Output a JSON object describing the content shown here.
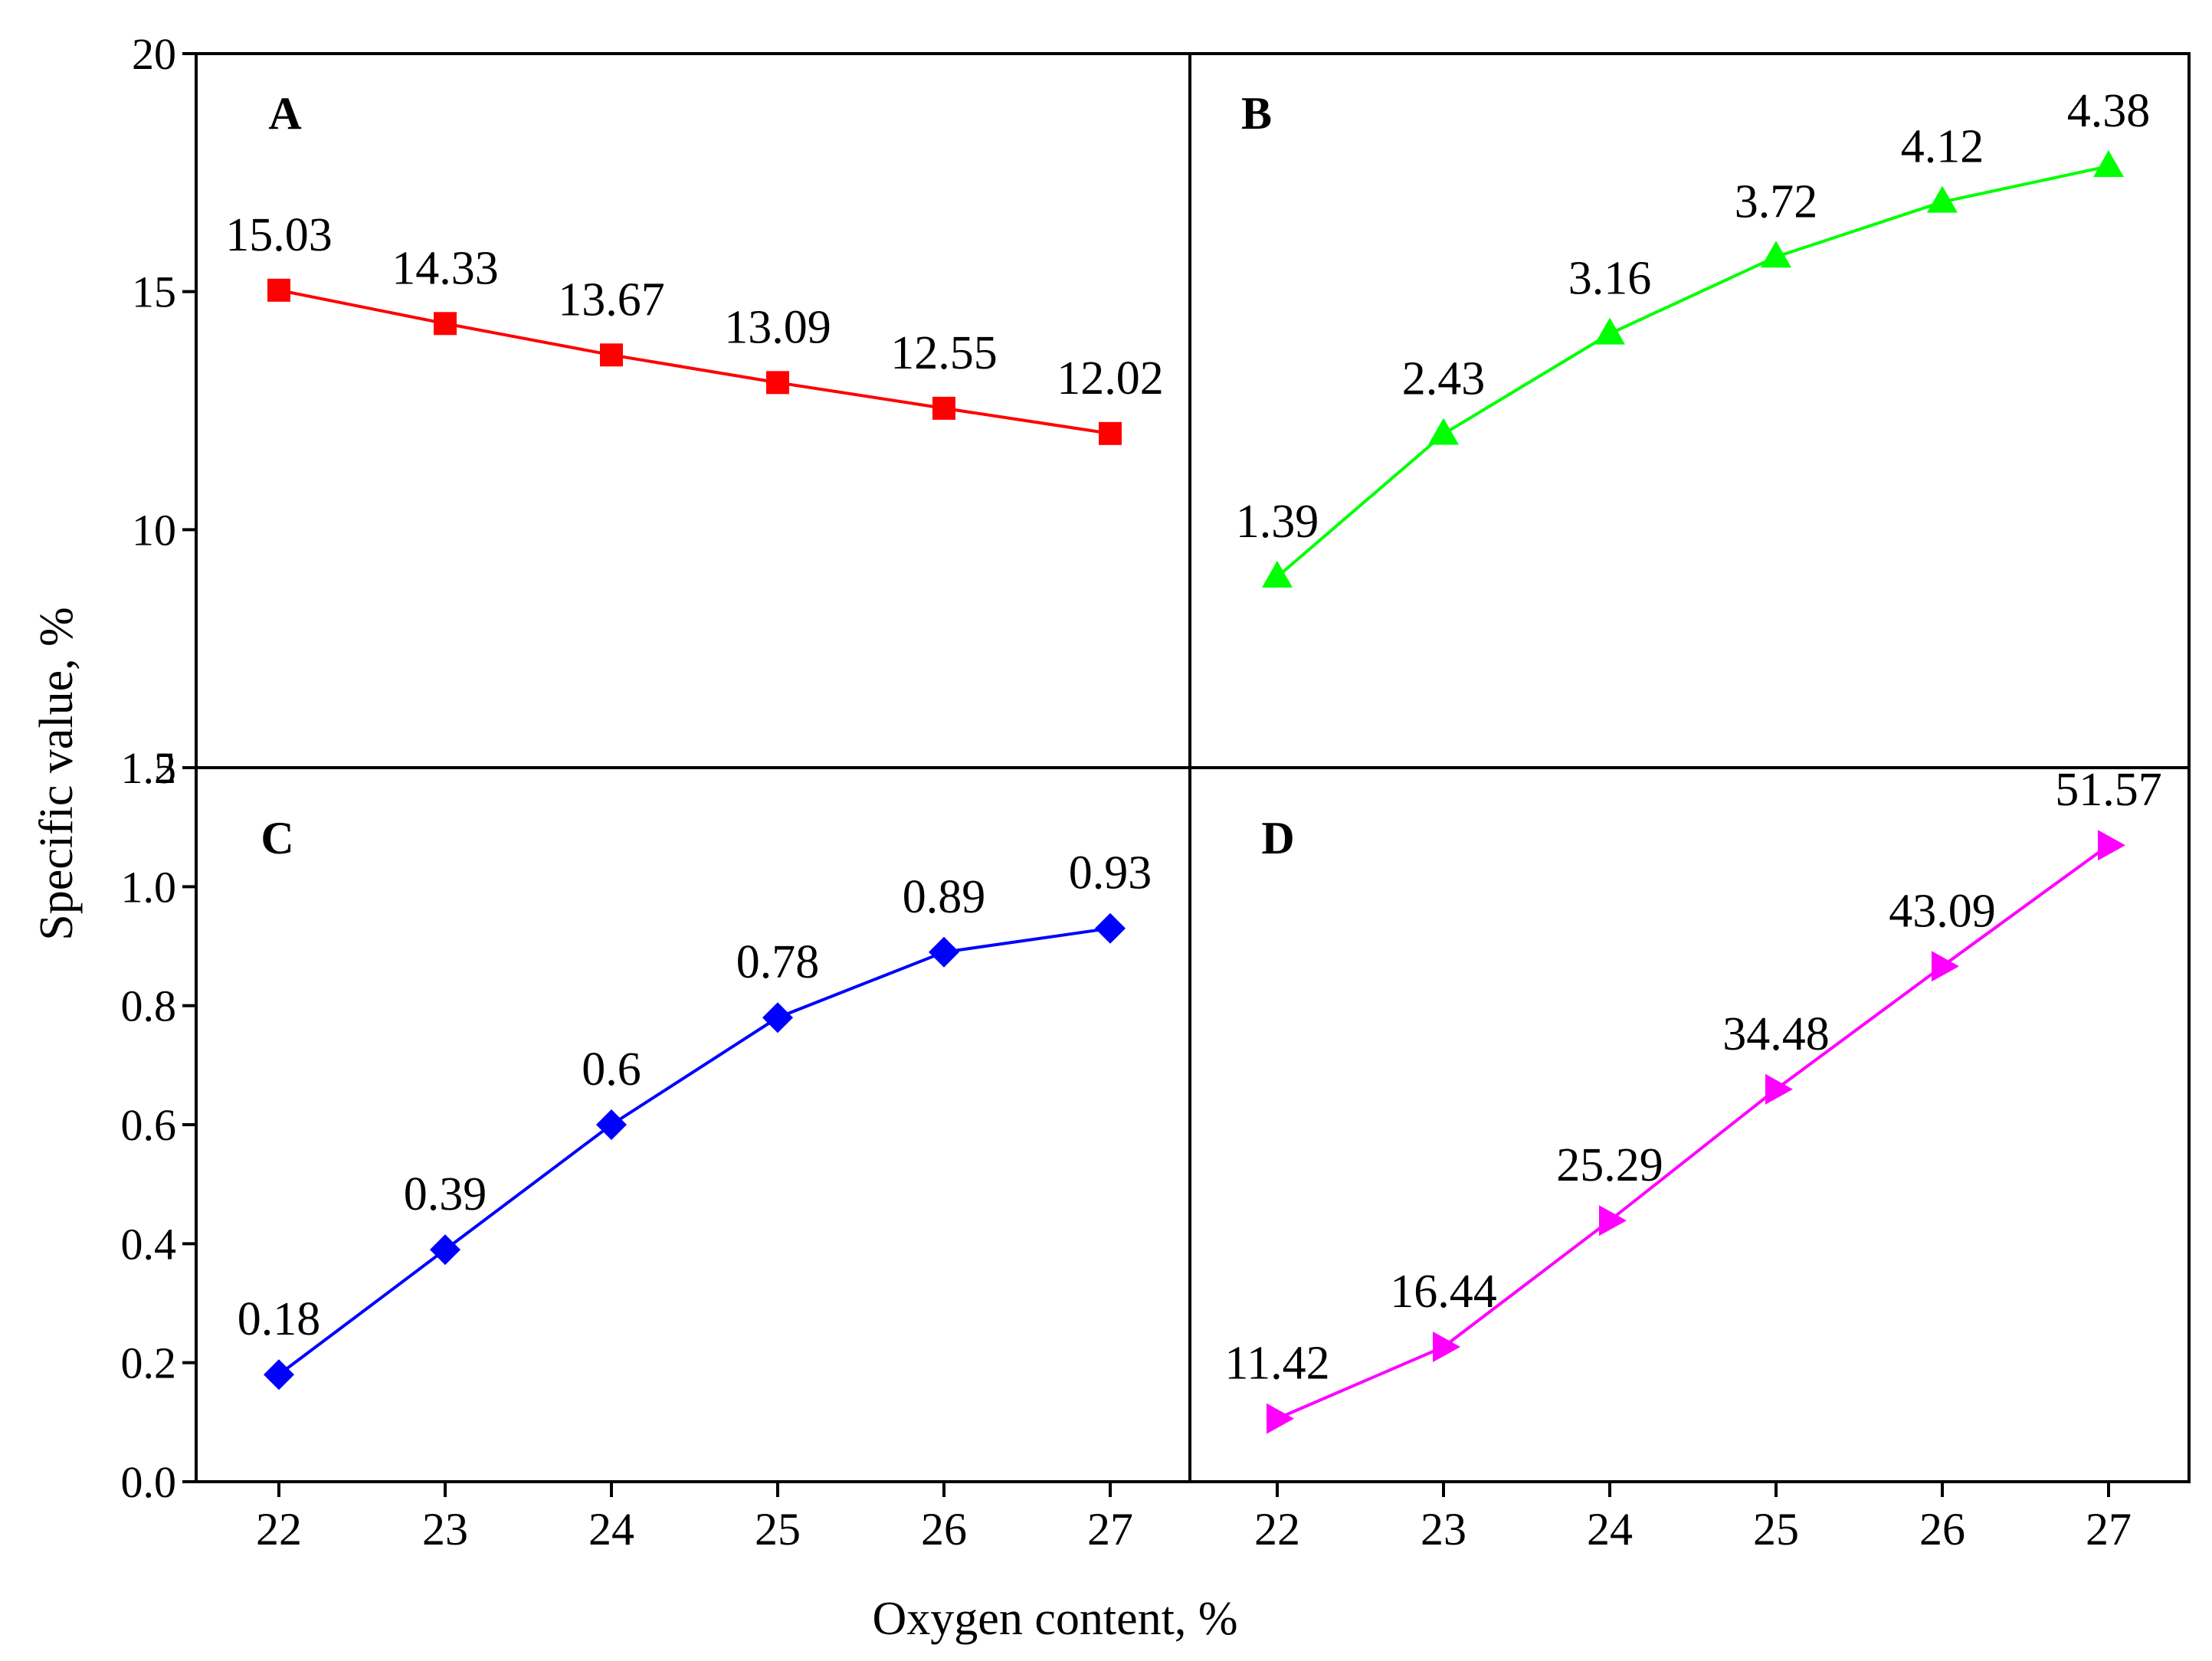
{
  "figure": {
    "xlabel": "Oxygen content, %",
    "ylabel": "Specific value, %"
  },
  "chart_data": [
    {
      "panel": "A",
      "type": "line",
      "marker": "square",
      "color": "#ff0000",
      "x": [
        22,
        23,
        24,
        25,
        26,
        27
      ],
      "values": [
        15.03,
        14.33,
        13.67,
        13.09,
        12.55,
        12.02
      ],
      "labels": [
        "15.03",
        "14.33",
        "13.67",
        "13.09",
        "12.55",
        "12.02"
      ],
      "ylim": [
        5,
        20
      ],
      "yticks": [
        "20",
        "15",
        "10",
        "5"
      ],
      "yticks_values": [
        20,
        15,
        10,
        5
      ]
    },
    {
      "panel": "B",
      "type": "line",
      "marker": "triangle-up",
      "color": "#00ff00",
      "x": [
        22,
        23,
        24,
        25,
        26,
        27
      ],
      "values": [
        1.39,
        2.43,
        3.16,
        3.72,
        4.12,
        4.38
      ],
      "labels": [
        "1.39",
        "2.43",
        "3.16",
        "3.72",
        "4.12",
        "4.38"
      ],
      "ylim": [
        0,
        5.2
      ]
    },
    {
      "panel": "C",
      "type": "line",
      "marker": "diamond",
      "color": "#0000ff",
      "x": [
        22,
        23,
        24,
        25,
        26,
        27
      ],
      "values": [
        0.18,
        0.39,
        0.6,
        0.78,
        0.89,
        0.93
      ],
      "labels": [
        "0.18",
        "0.39",
        "0.6",
        "0.78",
        "0.89",
        "0.93"
      ],
      "ylim": [
        0,
        1.2
      ],
      "yticks": [
        "1.2",
        "1.0",
        "0.8",
        "0.6",
        "0.4",
        "0.2",
        "0.0"
      ],
      "yticks_values": [
        1.2,
        1.0,
        0.8,
        0.6,
        0.4,
        0.2,
        0.0
      ],
      "xticks": [
        "22",
        "23",
        "24",
        "25",
        "26",
        "27"
      ]
    },
    {
      "panel": "D",
      "type": "line",
      "marker": "triangle-right",
      "color": "#ff00ff",
      "x": [
        22,
        23,
        24,
        25,
        26,
        27
      ],
      "values": [
        11.42,
        16.44,
        25.29,
        34.48,
        43.09,
        51.57
      ],
      "labels": [
        "11.42",
        "16.44",
        "25.29",
        "34.48",
        "43.09",
        "51.57"
      ],
      "ylim": [
        7,
        57
      ],
      "xticks": [
        "22",
        "23",
        "24",
        "25",
        "26",
        "27"
      ]
    }
  ]
}
